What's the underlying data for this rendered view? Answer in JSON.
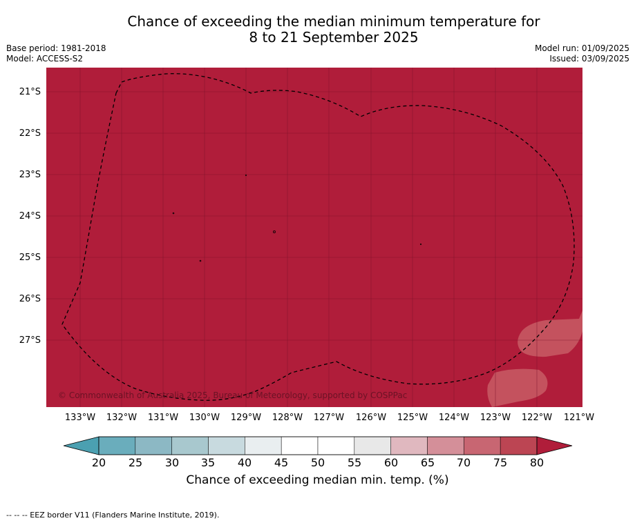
{
  "title_line1": "Chance of exceeding the median minimum temperature for",
  "title_line2": "8 to 21 September 2025",
  "base_period": "Base period: 1981-2018",
  "model": "Model: ACCESS-S2",
  "model_run": "Model run: 01/09/2025",
  "issued": "Issued: 03/09/2025",
  "copyright": "© Commonwealth of Australia 2025, Bureau of Meteorology, supported by COSPPac",
  "lat_labels": [
    "21°S",
    "22°S",
    "23°S",
    "24°S",
    "25°S",
    "26°S",
    "27°S"
  ],
  "lon_labels": [
    "133°W",
    "132°W",
    "131°W",
    "130°W",
    "129°W",
    "128°W",
    "127°W",
    "126°W",
    "125°W",
    "124°W",
    "123°W",
    "122°W",
    "121°W"
  ],
  "colorbar": {
    "ticks": [
      "20",
      "25",
      "30",
      "35",
      "40",
      "45",
      "50",
      "55",
      "60",
      "65",
      "70",
      "75",
      "80"
    ],
    "colors": [
      "#6aadbc",
      "#8cb8c4",
      "#a8c8ce",
      "#c8dadf",
      "#e9eef0",
      "#ffffff",
      "#ffffff",
      "#e8e8e8",
      "#e0b8bf",
      "#d48f99",
      "#c86672",
      "#bc4553"
    ],
    "under_color": "#4ba0b1",
    "over_color": "#b01d3a",
    "label": "Chance of exceeding median min. temp. (%)"
  },
  "colors": {
    "map_fill": "#b01d3a",
    "light_patch": "#c4525e"
  },
  "footer": "--  --  -- EEZ border V11 (Flanders Marine Institute, 2019)."
}
